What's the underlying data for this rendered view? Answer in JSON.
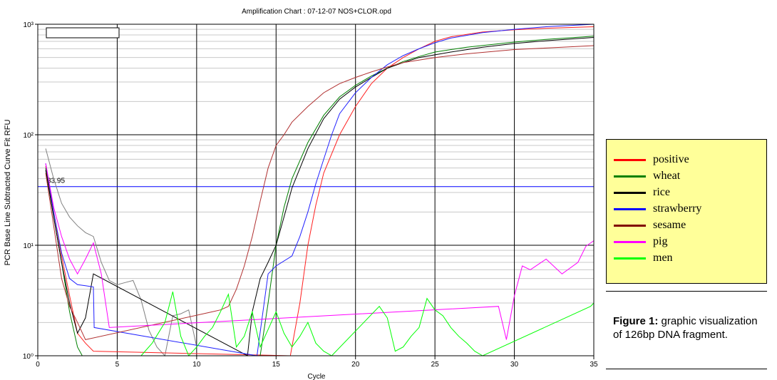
{
  "chart_data": {
    "type": "line",
    "title": "Amplification Chart : 07-12-07 NOS+CLOR.opd",
    "xlabel": "Cycle",
    "ylabel": "PCR Base Line Subtracted Curve Fit RFU",
    "xlim": [
      0,
      35
    ],
    "ylim": [
      1,
      1000
    ],
    "yscale": "log",
    "x_ticks": [
      "0",
      "5",
      "10",
      "15",
      "20",
      "25",
      "30",
      "35"
    ],
    "y_ticks": [
      {
        "v": 1,
        "label": "10⁰"
      },
      {
        "v": 10,
        "label": "10¹"
      },
      {
        "v": 100,
        "label": "10²"
      },
      {
        "v": 1000,
        "label": "10³"
      }
    ],
    "threshold": {
      "value": 33.95,
      "label": "33.95",
      "color": "#0000ff"
    },
    "grid": true,
    "series": [
      {
        "name": "positive",
        "color": "#ff0000",
        "line_color": "#ff2020",
        "points": [
          [
            0.5,
            52
          ],
          [
            1,
            20
          ],
          [
            1.5,
            8
          ],
          [
            2,
            3.5
          ],
          [
            2.5,
            1.6
          ],
          [
            3,
            1.3
          ],
          [
            3.5,
            1.1
          ],
          [
            15.9,
            1
          ],
          [
            16.5,
            3
          ],
          [
            17,
            10
          ],
          [
            17.5,
            23
          ],
          [
            18,
            45
          ],
          [
            19,
            100
          ],
          [
            20,
            180
          ],
          [
            21,
            290
          ],
          [
            22,
            400
          ],
          [
            23,
            500
          ],
          [
            24,
            600
          ],
          [
            25,
            700
          ],
          [
            26,
            770
          ],
          [
            28,
            850
          ],
          [
            30,
            890
          ],
          [
            32,
            920
          ],
          [
            35,
            950
          ]
        ]
      },
      {
        "name": "wheat",
        "color": "#008000",
        "line_color": "#008000",
        "points": [
          [
            0.5,
            50
          ],
          [
            1,
            18
          ],
          [
            1.5,
            7
          ],
          [
            2,
            2.5
          ],
          [
            2.5,
            1.2
          ],
          [
            2.8,
            1
          ],
          [
            14,
            1
          ],
          [
            14.5,
            3
          ],
          [
            15,
            10
          ],
          [
            15.5,
            22
          ],
          [
            16,
            40
          ],
          [
            17,
            85
          ],
          [
            18,
            150
          ],
          [
            19,
            220
          ],
          [
            20,
            280
          ],
          [
            21,
            340
          ],
          [
            22,
            400
          ],
          [
            23,
            460
          ],
          [
            24,
            510
          ],
          [
            25,
            560
          ],
          [
            27,
            620
          ],
          [
            30,
            690
          ],
          [
            32,
            730
          ],
          [
            35,
            780
          ]
        ]
      },
      {
        "name": "rice",
        "color": "#000000",
        "line_color": "#000000",
        "points": [
          [
            0.5,
            48
          ],
          [
            1,
            18
          ],
          [
            1.5,
            7
          ],
          [
            2,
            3
          ],
          [
            2.5,
            1.6
          ],
          [
            3,
            2.2
          ],
          [
            3.5,
            5.5
          ],
          [
            13.2,
            1
          ],
          [
            13.5,
            2.5
          ],
          [
            14,
            5
          ],
          [
            14.5,
            7
          ],
          [
            15,
            10
          ],
          [
            15.5,
            18
          ],
          [
            16,
            33
          ],
          [
            17,
            75
          ],
          [
            18,
            140
          ],
          [
            19,
            210
          ],
          [
            20,
            270
          ],
          [
            21,
            330
          ],
          [
            22,
            400
          ],
          [
            23,
            450
          ],
          [
            24,
            500
          ],
          [
            26,
            560
          ],
          [
            28,
            620
          ],
          [
            30,
            670
          ],
          [
            32,
            710
          ],
          [
            35,
            760
          ]
        ]
      },
      {
        "name": "strawberry",
        "color": "#0000ff",
        "line_color": "#2020ff",
        "points": [
          [
            0.5,
            55
          ],
          [
            1,
            20
          ],
          [
            1.5,
            8.5
          ],
          [
            2,
            5
          ],
          [
            2.5,
            4.4
          ],
          [
            3,
            4.3
          ],
          [
            3.5,
            4.2
          ],
          [
            3.55,
            1.8
          ],
          [
            13.8,
            1
          ],
          [
            14.5,
            5.5
          ],
          [
            15,
            6.5
          ],
          [
            16,
            8
          ],
          [
            16.5,
            12
          ],
          [
            17,
            20
          ],
          [
            17.5,
            36
          ],
          [
            18,
            60
          ],
          [
            18.5,
            100
          ],
          [
            19,
            155
          ],
          [
            20,
            240
          ],
          [
            21,
            330
          ],
          [
            22,
            430
          ],
          [
            23,
            520
          ],
          [
            24,
            600
          ],
          [
            25,
            680
          ],
          [
            26,
            750
          ],
          [
            28,
            840
          ],
          [
            30,
            900
          ],
          [
            32,
            950
          ],
          [
            35,
            1000
          ]
        ]
      },
      {
        "name": "sesame",
        "color": "#800000",
        "line_color": "#b03030",
        "points": [
          [
            0.5,
            45
          ],
          [
            1,
            15
          ],
          [
            1.5,
            5
          ],
          [
            2,
            2.8
          ],
          [
            2.5,
            2
          ],
          [
            3,
            1.4
          ],
          [
            11,
            2.5
          ],
          [
            11.5,
            2.6
          ],
          [
            12,
            2.8
          ],
          [
            12.5,
            4
          ],
          [
            13,
            6.5
          ],
          [
            13.5,
            12
          ],
          [
            14,
            25
          ],
          [
            14.5,
            50
          ],
          [
            15,
            80
          ],
          [
            15.5,
            100
          ],
          [
            16,
            130
          ],
          [
            17,
            180
          ],
          [
            18,
            240
          ],
          [
            19,
            290
          ],
          [
            20,
            330
          ],
          [
            21,
            370
          ],
          [
            22,
            410
          ],
          [
            23,
            450
          ],
          [
            25,
            500
          ],
          [
            27,
            540
          ],
          [
            30,
            590
          ],
          [
            33,
            620
          ],
          [
            35,
            640
          ]
        ]
      },
      {
        "name": "pig",
        "color": "#ff00ff",
        "line_color": "#ff00ff",
        "points": [
          [
            0.5,
            55
          ],
          [
            1,
            22
          ],
          [
            1.5,
            12
          ],
          [
            2,
            7.5
          ],
          [
            2.5,
            5.5
          ],
          [
            3,
            7.5
          ],
          [
            3.5,
            10.5
          ],
          [
            4,
            5.5
          ],
          [
            4.5,
            1.8
          ],
          [
            29,
            2.8
          ],
          [
            29.5,
            1.4
          ],
          [
            30,
            3.5
          ],
          [
            30.5,
            6.5
          ],
          [
            31,
            6
          ],
          [
            32,
            7.5
          ],
          [
            33,
            5.5
          ],
          [
            34,
            7
          ],
          [
            34.5,
            9.8
          ],
          [
            35,
            11
          ]
        ]
      },
      {
        "name": "men",
        "color": "#00ff00",
        "line_color": "#00ff00",
        "points": [
          [
            6.5,
            1
          ],
          [
            7.2,
            1.3
          ],
          [
            8,
            2
          ],
          [
            8.5,
            3.8
          ],
          [
            9,
            1.5
          ],
          [
            9.5,
            1
          ],
          [
            10,
            1.2
          ],
          [
            10.5,
            1.5
          ],
          [
            11,
            1.8
          ],
          [
            11.5,
            2.5
          ],
          [
            12,
            3.6
          ],
          [
            12.5,
            1.2
          ],
          [
            13,
            1.5
          ],
          [
            13.5,
            2.5
          ],
          [
            14,
            1.2
          ],
          [
            15,
            2.5
          ],
          [
            15.5,
            1.6
          ],
          [
            16,
            1.2
          ],
          [
            16.5,
            1.5
          ],
          [
            17,
            2
          ],
          [
            17.5,
            1.3
          ],
          [
            18,
            1.1
          ],
          [
            18.5,
            1
          ],
          [
            21.5,
            2.8
          ],
          [
            22,
            2.2
          ],
          [
            22.5,
            1.1
          ],
          [
            23,
            1.2
          ],
          [
            23.5,
            1.5
          ],
          [
            24,
            1.8
          ],
          [
            24.5,
            3.3
          ],
          [
            25,
            2.6
          ],
          [
            25.5,
            2.3
          ],
          [
            26,
            1.8
          ],
          [
            26.5,
            1.5
          ],
          [
            27,
            1.3
          ],
          [
            27.5,
            1.1
          ],
          [
            28,
            1
          ],
          [
            34.8,
            2.8
          ],
          [
            35,
            3
          ]
        ]
      }
    ],
    "extra_curve": {
      "color": "#808080",
      "points": [
        [
          0.5,
          75
        ],
        [
          1,
          40
        ],
        [
          1.5,
          24
        ],
        [
          2,
          18
        ],
        [
          2.5,
          15
        ],
        [
          3,
          13
        ],
        [
          3.5,
          12
        ],
        [
          4,
          7
        ],
        [
          4.5,
          4.8
        ],
        [
          5,
          4.4
        ],
        [
          5.5,
          4.6
        ],
        [
          6,
          4.8
        ],
        [
          6.5,
          3.2
        ],
        [
          7,
          1.7
        ],
        [
          7.5,
          1.2
        ],
        [
          8,
          1
        ],
        [
          8.5,
          2.3
        ],
        [
          9,
          2.4
        ],
        [
          9.5,
          2.6
        ],
        [
          10,
          1.2
        ]
      ]
    }
  },
  "legend": [
    {
      "label": "positive",
      "color": "#ff0000"
    },
    {
      "label": "wheat",
      "color": "#008000"
    },
    {
      "label": "rice",
      "color": "#000000"
    },
    {
      "label": "strawberry",
      "color": "#0000ff"
    },
    {
      "label": "sesame",
      "color": "#800000"
    },
    {
      "label": "pig",
      "color": "#ff00ff"
    },
    {
      "label": "men",
      "color": "#00ff00"
    }
  ],
  "caption": {
    "bold": "Figure 1:",
    "text": " graphic visualization of 126bp DNA fragment."
  }
}
